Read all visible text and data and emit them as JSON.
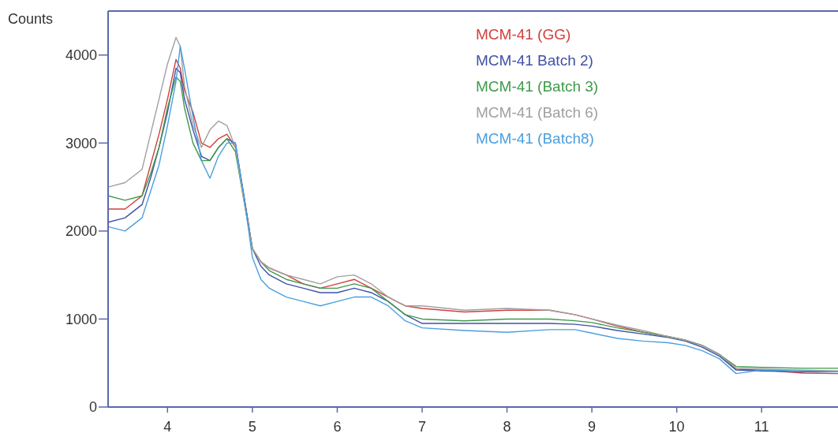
{
  "chart_data": {
    "type": "line",
    "ylabel": "Counts",
    "x": [
      3.3,
      3.5,
      3.7,
      3.8,
      3.9,
      4.0,
      4.1,
      4.15,
      4.2,
      4.3,
      4.4,
      4.5,
      4.6,
      4.7,
      4.8,
      4.9,
      5.0,
      5.1,
      5.2,
      5.4,
      5.6,
      5.8,
      6.0,
      6.2,
      6.4,
      6.6,
      6.8,
      7.0,
      7.5,
      8.0,
      8.5,
      8.8,
      9.0,
      9.3,
      9.6,
      9.9,
      10.1,
      10.3,
      10.5,
      10.7,
      11.0,
      11.5,
      11.9
    ],
    "series": [
      {
        "name": "MCM-41 (GG)",
        "color": "#d0403c",
        "values": [
          2250,
          2250,
          2400,
          2750,
          3100,
          3500,
          3950,
          3850,
          3600,
          3350,
          3000,
          2950,
          3050,
          3100,
          2950,
          2400,
          1800,
          1650,
          1580,
          1500,
          1400,
          1350,
          1400,
          1450,
          1350,
          1250,
          1150,
          1120,
          1080,
          1100,
          1100,
          1050,
          1000,
          920,
          850,
          800,
          760,
          700,
          600,
          430,
          420,
          385,
          380
        ]
      },
      {
        "name": "MCM-41 Batch 2)",
        "color": "#3f51a8",
        "values": [
          2100,
          2150,
          2300,
          2600,
          2950,
          3350,
          3850,
          3800,
          3500,
          3150,
          2850,
          2800,
          2950,
          3050,
          3000,
          2400,
          1800,
          1600,
          1500,
          1400,
          1350,
          1300,
          1300,
          1350,
          1300,
          1200,
          1050,
          950,
          950,
          950,
          950,
          940,
          920,
          870,
          830,
          790,
          750,
          680,
          580,
          420,
          410,
          400,
          400
        ]
      },
      {
        "name": "MCM-41 (Batch 3)",
        "color": "#3f9a4a",
        "values": [
          2400,
          2350,
          2400,
          2650,
          2950,
          3400,
          3750,
          3700,
          3400,
          3000,
          2800,
          2800,
          2950,
          3050,
          2900,
          2350,
          1800,
          1650,
          1550,
          1450,
          1400,
          1350,
          1350,
          1400,
          1350,
          1200,
          1050,
          1000,
          980,
          1000,
          1000,
          980,
          960,
          900,
          850,
          800,
          760,
          700,
          600,
          460,
          450,
          440,
          440
        ]
      },
      {
        "name": "MCM-41 (Batch 6)",
        "color": "#a0a0a0",
        "values": [
          2500,
          2550,
          2700,
          3100,
          3500,
          3900,
          4200,
          4100,
          3650,
          3200,
          2950,
          3150,
          3250,
          3200,
          2950,
          2350,
          1800,
          1650,
          1580,
          1500,
          1450,
          1400,
          1480,
          1500,
          1400,
          1250,
          1150,
          1150,
          1100,
          1120,
          1100,
          1050,
          1000,
          930,
          870,
          800,
          760,
          700,
          600,
          440,
          430,
          420,
          410
        ]
      },
      {
        "name": "MCM-41 (Batch8)",
        "color": "#4a9fe0",
        "values": [
          2050,
          2000,
          2150,
          2450,
          2750,
          3200,
          3700,
          4100,
          3850,
          3300,
          2800,
          2600,
          2850,
          3000,
          3000,
          2400,
          1700,
          1450,
          1350,
          1250,
          1200,
          1150,
          1200,
          1250,
          1250,
          1150,
          980,
          900,
          870,
          850,
          880,
          880,
          840,
          780,
          750,
          730,
          700,
          640,
          550,
          380,
          420,
          410,
          400
        ]
      }
    ],
    "xlim": [
      3.3,
      11.9
    ],
    "xticks": [
      4,
      5,
      6,
      7,
      8,
      9,
      10,
      11
    ],
    "ylim": [
      0,
      4500
    ],
    "yticks": [
      0,
      1000,
      2000,
      3000,
      4000
    ],
    "grid": false,
    "legend": "top right",
    "marker": "none",
    "line_style": "solid"
  }
}
